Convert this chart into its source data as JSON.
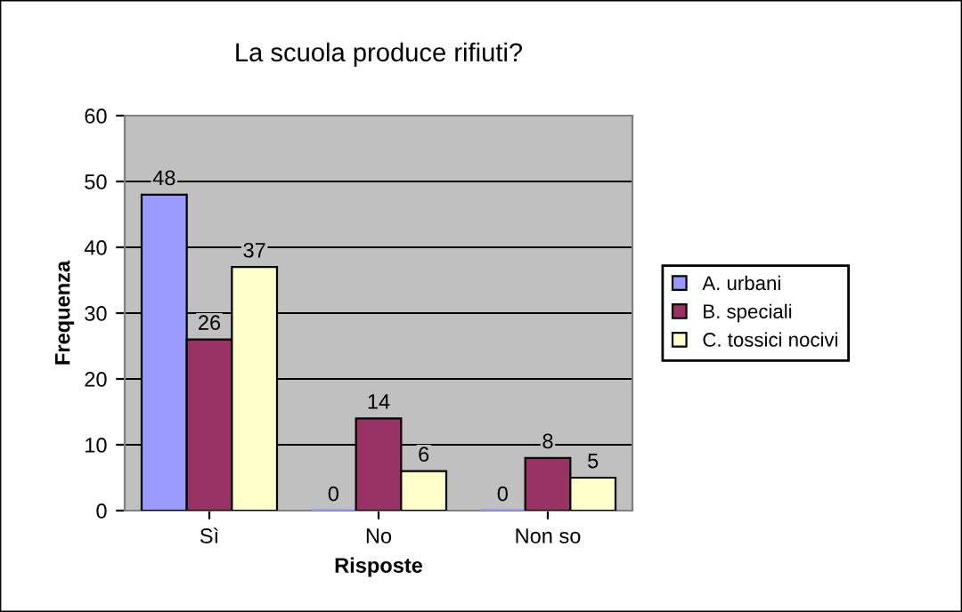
{
  "chart_data": {
    "type": "bar",
    "title": "La scuola produce rifiuti?",
    "xlabel": "Risposte",
    "ylabel": "Frequenza",
    "categories": [
      "Sì",
      "No",
      "Non so"
    ],
    "series": [
      {
        "name": "A. urbani",
        "color": "#9999ff",
        "values": [
          48,
          0,
          0
        ]
      },
      {
        "name": "B. speciali",
        "color": "#993366",
        "values": [
          26,
          14,
          8
        ]
      },
      {
        "name": "C. tossici nocivi",
        "color": "#ffffcc",
        "values": [
          37,
          6,
          5
        ]
      }
    ],
    "ylim": [
      0,
      60
    ],
    "yticks": [
      0,
      10,
      20,
      30,
      40,
      50,
      60
    ],
    "grid": "y",
    "legend": "right",
    "data_labels": true
  }
}
